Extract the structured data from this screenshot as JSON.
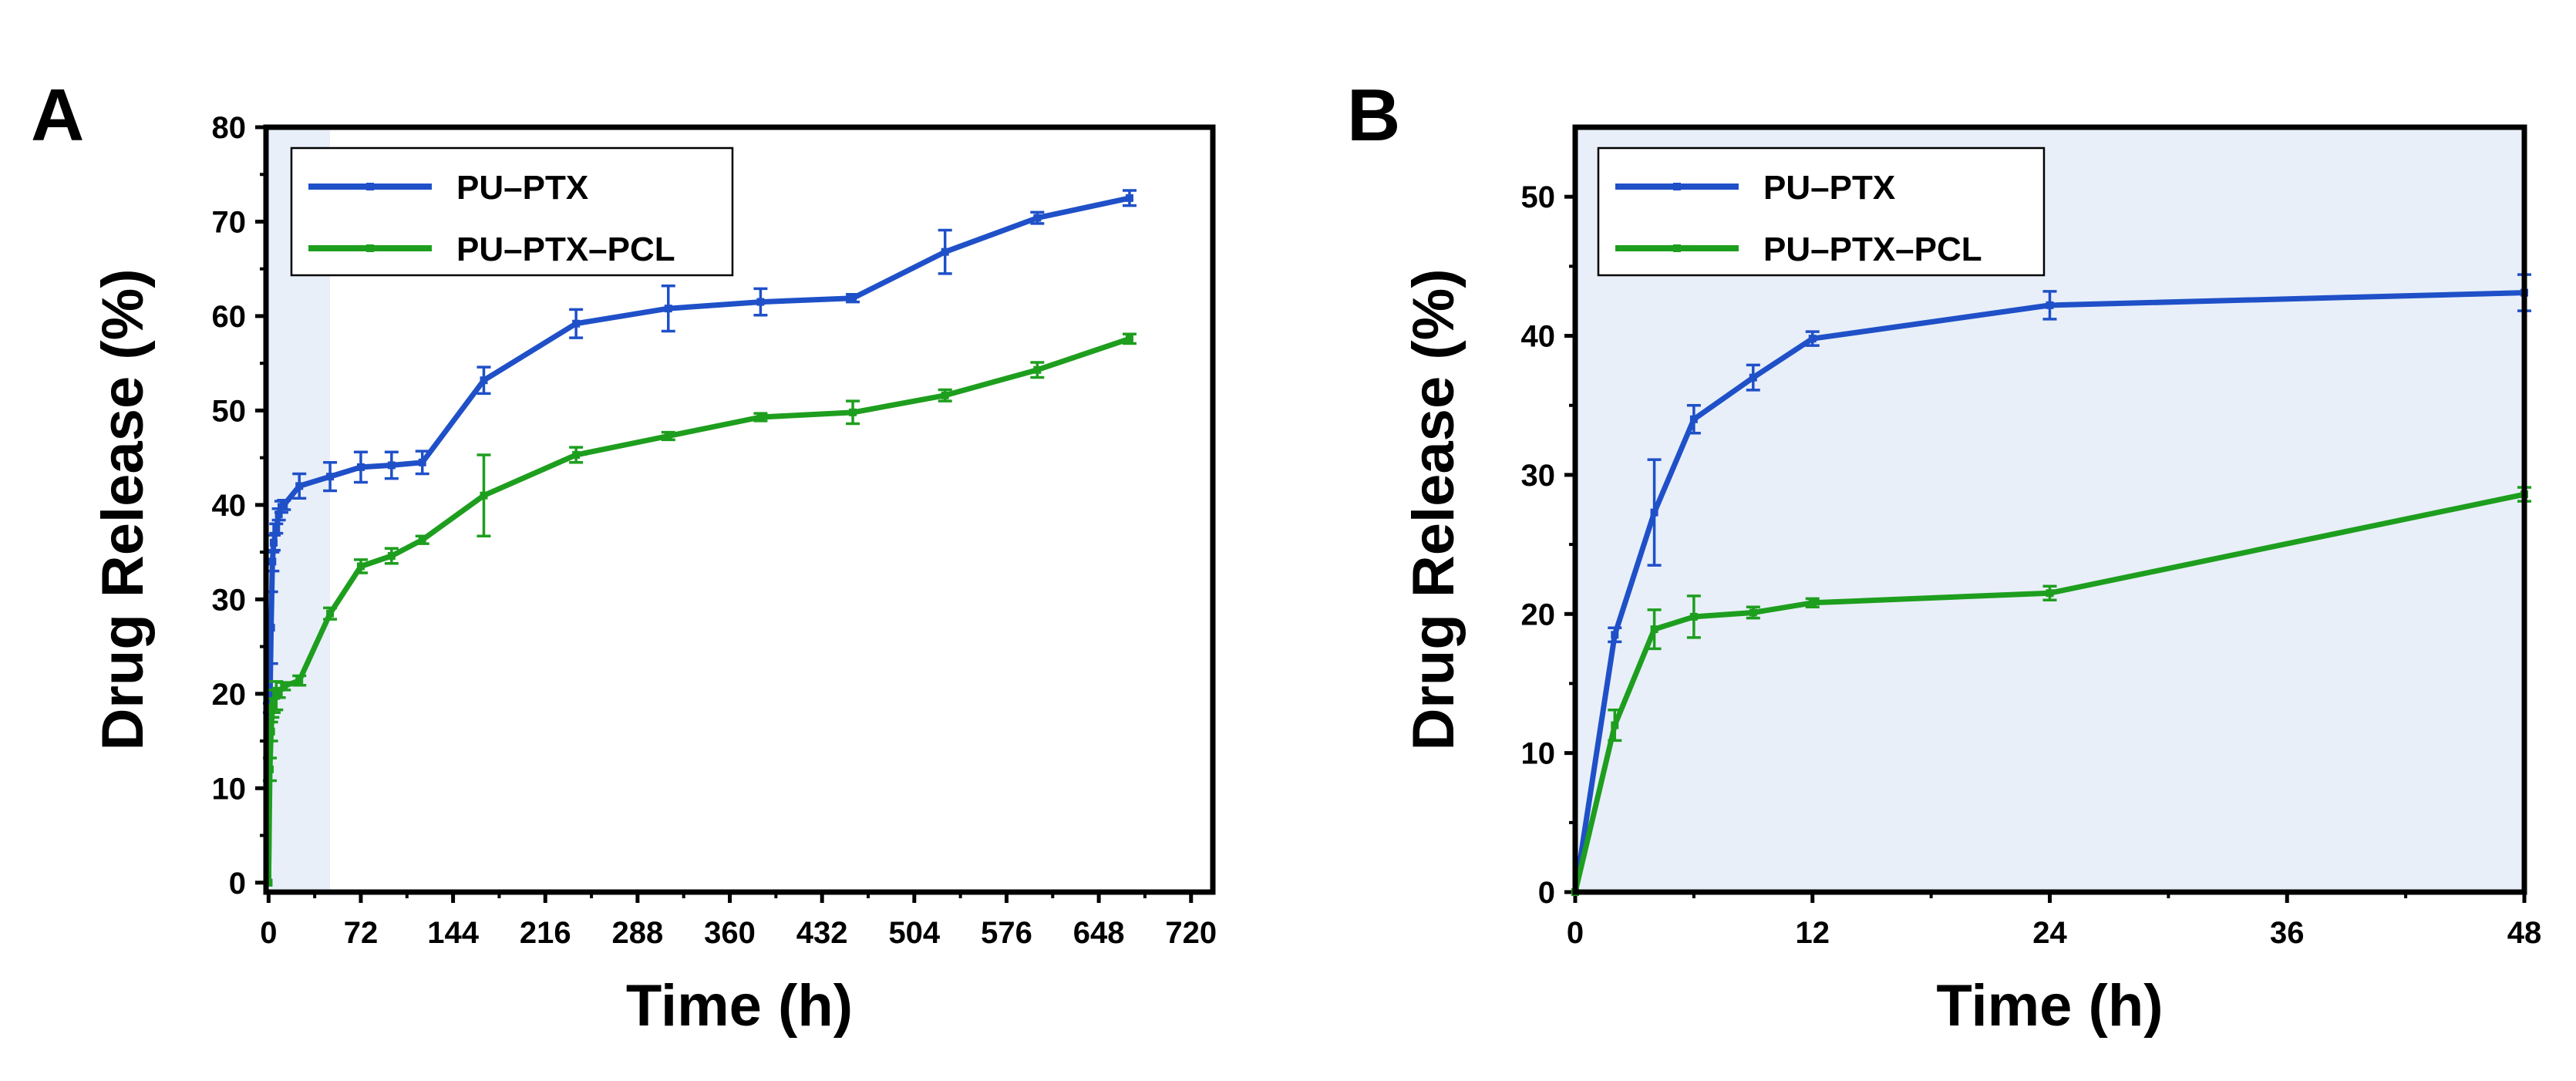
{
  "colors": {
    "pu_ptx": "#1f50c8",
    "pu_ptx_pcl": "#1e9e1e",
    "shade": "#e8eff9"
  },
  "chart_data": [
    {
      "panel": "A",
      "type": "line",
      "xlabel": "Time (h)",
      "ylabel": "Drug Release (%)",
      "xlim": [
        -2,
        737
      ],
      "ylim": [
        -1,
        80
      ],
      "xticks": [
        0,
        72,
        144,
        216,
        288,
        360,
        432,
        504,
        576,
        648,
        720
      ],
      "yticks": [
        0,
        10,
        20,
        30,
        40,
        50,
        60,
        70,
        80
      ],
      "shaded_x": [
        -2,
        48
      ],
      "legend_position": "top-left",
      "series": [
        {
          "name": "PU–PTX",
          "x": [
            0,
            1,
            2,
            3,
            4,
            6,
            8,
            10,
            12,
            24,
            48,
            72,
            96,
            120,
            168,
            240,
            312,
            384,
            456,
            528,
            600,
            672
          ],
          "y": [
            0,
            18.5,
            27,
            34,
            36,
            37.5,
            39,
            39.8,
            40,
            42,
            43,
            44,
            44.2,
            44.5,
            53.2,
            59.2,
            60.8,
            61.5,
            61.9,
            66.8,
            70.4,
            72.5
          ],
          "err": [
            0,
            0.5,
            3.8,
            1.0,
            0.8,
            0.5,
            0.6,
            0.6,
            0.5,
            1.3,
            1.5,
            1.6,
            1.4,
            1.2,
            1.4,
            1.5,
            2.4,
            1.4,
            0.4,
            2.3,
            0.6,
            0.8
          ]
        },
        {
          "name": "PU–PTX–PCL",
          "x": [
            0,
            1,
            2,
            3,
            4,
            6,
            8,
            12,
            24,
            48,
            72,
            96,
            120,
            168,
            240,
            312,
            384,
            456,
            528,
            600,
            672
          ],
          "y": [
            0,
            12,
            16,
            18.5,
            19.2,
            19.8,
            20.1,
            20.8,
            21.4,
            28.5,
            33.5,
            34.6,
            36.3,
            41.0,
            45.3,
            47.3,
            49.3,
            49.8,
            51.6,
            54.3,
            57.6
          ],
          "err": [
            0,
            1.2,
            1.0,
            1.0,
            1.2,
            1.5,
            0.5,
            0.4,
            0.5,
            0.6,
            0.7,
            0.8,
            0.4,
            4.3,
            0.8,
            0.4,
            0.4,
            1.2,
            0.6,
            0.8,
            0.5
          ]
        }
      ]
    },
    {
      "panel": "B",
      "type": "line",
      "xlabel": "Time (h)",
      "ylabel": "Drug Release (%)",
      "xlim": [
        0,
        48
      ],
      "ylim": [
        0,
        55
      ],
      "xticks": [
        0,
        12,
        24,
        36,
        48
      ],
      "yticks": [
        0,
        10,
        20,
        30,
        40,
        50
      ],
      "shaded_x": [
        0,
        48
      ],
      "legend_position": "top-left",
      "series": [
        {
          "name": "PU–PTX",
          "x": [
            0,
            2,
            4,
            6,
            9,
            12,
            24,
            48
          ],
          "y": [
            0,
            18.5,
            27.3,
            34.0,
            37.0,
            39.8,
            42.2,
            43.1
          ],
          "err": [
            0,
            0.5,
            3.8,
            1.0,
            0.9,
            0.5,
            1.0,
            1.3
          ]
        },
        {
          "name": "PU–PTX–PCL",
          "x": [
            0,
            2,
            4,
            6,
            9,
            12,
            24,
            48
          ],
          "y": [
            0,
            12.0,
            18.9,
            19.8,
            20.1,
            20.8,
            21.5,
            28.6
          ],
          "err": [
            0,
            1.1,
            1.4,
            1.5,
            0.4,
            0.3,
            0.5,
            0.5
          ]
        }
      ]
    }
  ]
}
